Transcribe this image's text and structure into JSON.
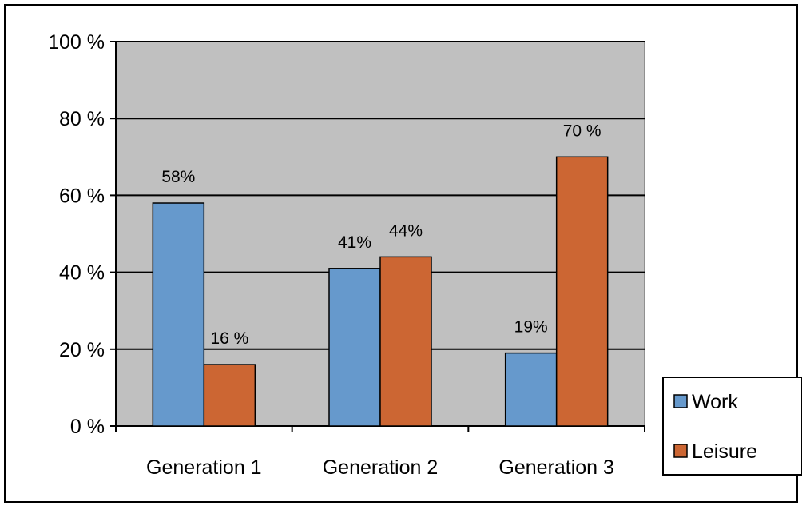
{
  "chart_data": {
    "type": "bar",
    "categories": [
      "Generation 1",
      "Generation 2",
      "Generation 3"
    ],
    "series": [
      {
        "name": "Work",
        "values": [
          58,
          41,
          19
        ],
        "labels": [
          "58%",
          "41%",
          "19%"
        ],
        "color": "#6699cc"
      },
      {
        "name": "Leisure",
        "values": [
          16,
          44,
          70
        ],
        "labels": [
          "16 %",
          "44%",
          "70 %"
        ],
        "color": "#cc6633"
      }
    ],
    "title": "",
    "xlabel": "",
    "ylabel": "",
    "ylim": [
      0,
      100
    ],
    "yticks": [
      0,
      20,
      40,
      60,
      80,
      100
    ],
    "ytick_labels": [
      "0 %",
      "20 %",
      "40 %",
      "60 %",
      "80 %",
      "100 %"
    ],
    "grid": true,
    "legend": "right",
    "plot_background": "#c0c0c0"
  }
}
